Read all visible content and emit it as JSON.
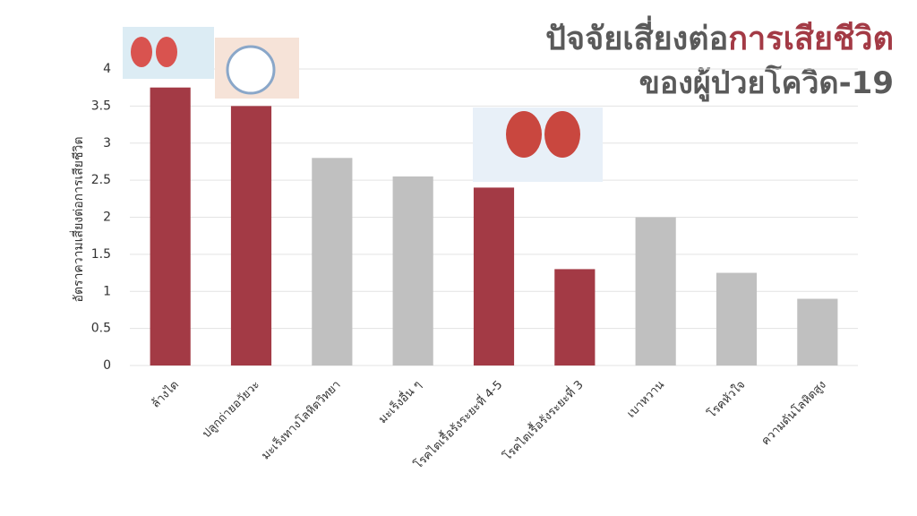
{
  "chart_data": {
    "type": "bar",
    "title": [
      "ปัจจัยเสี่ยงต่อ",
      "การเสียชีวิต"
    ],
    "subtitle": "ของผู้ป่วยโควิด-19",
    "title_colors": [
      "#5a5a5a",
      "#a33a45"
    ],
    "y_label": "อัตราความเสี่ยงต่อการเสียชีวิต",
    "categories": [
      "ล้างไต",
      "ปลูกถ่ายอวัยวะ",
      "มะเร็งทางโลหิตวิทยา",
      "มะเร็งอื่น ๆ",
      "โรคไตเรื้อรังระยะที่ 4-5",
      "โรคไตเรื้อรังระยะที่ 3",
      "เบาหวาน",
      "โรคหัวใจ",
      "ความดันโลหิตสูง"
    ],
    "values": [
      3.75,
      3.5,
      2.8,
      2.55,
      2.4,
      1.3,
      2.0,
      1.25,
      0.9
    ],
    "colors": [
      "#a33a45",
      "#a33a45",
      "#c0c0c0",
      "#c0c0c0",
      "#a33a45",
      "#a33a45",
      "#c0c0c0",
      "#c0c0c0",
      "#c0c0c0"
    ],
    "ylim": [
      0,
      4
    ],
    "yticks": [
      0,
      0.5,
      1,
      1.5,
      2,
      2.5,
      3,
      3.5,
      4
    ],
    "grid": true
  }
}
